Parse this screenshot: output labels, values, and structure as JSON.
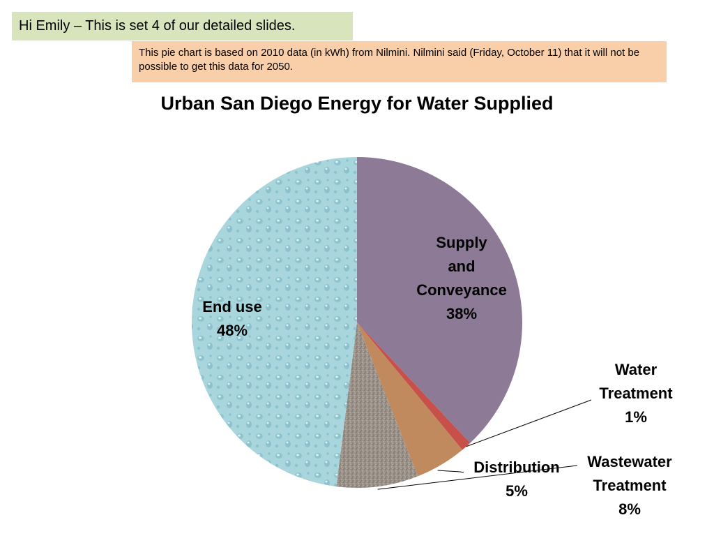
{
  "slide": {
    "greeting": "Hi Emily – This is set 4 of our detailed slides.",
    "note": "This pie chart is based on 2010 data (in kWh) from Nilmini. Nilmini said (Friday, October 11) that it  will not be possible to get this data for 2050.",
    "colors": {
      "greeting_bg": "#d8e5bc",
      "note_bg": "#f9cfa9"
    }
  },
  "chart_data": {
    "type": "pie",
    "title": "Urban San Diego Energy for Water Supplied",
    "slices": [
      {
        "name": "Supply and Conveyance",
        "value": 38,
        "label_lines": [
          "Supply",
          "and",
          "Conveyance",
          "38%"
        ],
        "color": "#8c7a97"
      },
      {
        "name": "Water Treatment",
        "value": 1,
        "label_lines": [
          "Water",
          "Treatment",
          "1%"
        ],
        "color": "#c8504b"
      },
      {
        "name": "Distribution",
        "value": 5,
        "label_lines": [
          "Distribution",
          "5%"
        ],
        "color": "#c08a5e"
      },
      {
        "name": "Wastewater Treatment",
        "value": 8,
        "label_lines": [
          "Wastewater",
          "Treatment",
          "8%"
        ],
        "color": "#9b938a"
      },
      {
        "name": "End use",
        "value": 48,
        "label_lines": [
          "End use",
          "48%"
        ],
        "color": "#a9d5dc"
      }
    ],
    "start_angle_deg": 0,
    "direction": "clockwise",
    "legend": "none",
    "data_labels": "category and percentage"
  }
}
